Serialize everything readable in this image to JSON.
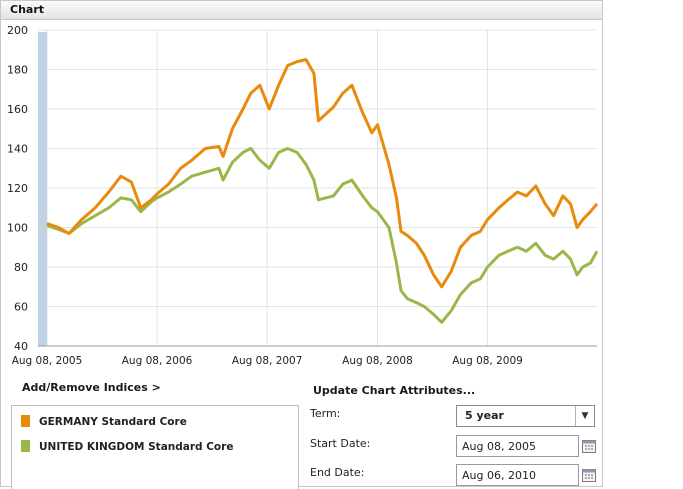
{
  "panel": {
    "title": "Chart"
  },
  "chart_data": {
    "type": "line",
    "ylim": [
      40,
      200
    ],
    "yticks": [
      "200",
      "180",
      "160",
      "140",
      "120",
      "100",
      "80",
      "60",
      "40"
    ],
    "xticks": [
      "Aug 08, 2005",
      "Aug 08, 2006",
      "Aug 08, 2007",
      "Aug 08, 2008",
      "Aug 08, 2009"
    ],
    "x_range": [
      "Aug 08, 2005",
      "Aug 06, 2010"
    ],
    "grid": true,
    "series": [
      {
        "name": "GERMANY Standard Core",
        "color": "#e88a0c",
        "points": [
          [
            "2005-08-08",
            102
          ],
          [
            "2005-09-15",
            100
          ],
          [
            "2005-10-20",
            97
          ],
          [
            "2005-12-01",
            104
          ],
          [
            "2006-01-15",
            110
          ],
          [
            "2006-03-01",
            118
          ],
          [
            "2006-04-10",
            126
          ],
          [
            "2006-05-15",
            123
          ],
          [
            "2006-06-15",
            110
          ],
          [
            "2006-07-20",
            114
          ],
          [
            "2006-08-08",
            117
          ],
          [
            "2006-09-15",
            122
          ],
          [
            "2006-10-25",
            130
          ],
          [
            "2006-12-01",
            134
          ],
          [
            "2007-01-15",
            140
          ],
          [
            "2007-03-01",
            141
          ],
          [
            "2007-03-15",
            136
          ],
          [
            "2007-04-15",
            150
          ],
          [
            "2007-05-20",
            160
          ],
          [
            "2007-06-15",
            168
          ],
          [
            "2007-07-15",
            172
          ],
          [
            "2007-08-15",
            160
          ],
          [
            "2007-09-15",
            172
          ],
          [
            "2007-10-15",
            182
          ],
          [
            "2007-11-15",
            184
          ],
          [
            "2007-12-15",
            185
          ],
          [
            "2008-01-10",
            178
          ],
          [
            "2008-01-25",
            154
          ],
          [
            "2008-03-15",
            161
          ],
          [
            "2008-04-15",
            168
          ],
          [
            "2008-05-15",
            172
          ],
          [
            "2008-06-20",
            158
          ],
          [
            "2008-07-20",
            148
          ],
          [
            "2008-08-08",
            152
          ],
          [
            "2008-09-15",
            132
          ],
          [
            "2008-10-10",
            115
          ],
          [
            "2008-10-25",
            98
          ],
          [
            "2008-11-15",
            96
          ],
          [
            "2008-12-15",
            92
          ],
          [
            "2009-01-10",
            86
          ],
          [
            "2009-02-10",
            76
          ],
          [
            "2009-03-09",
            70
          ],
          [
            "2009-04-10",
            78
          ],
          [
            "2009-05-10",
            90
          ],
          [
            "2009-06-15",
            96
          ],
          [
            "2009-07-15",
            98
          ],
          [
            "2009-08-08",
            104
          ],
          [
            "2009-09-15",
            110
          ],
          [
            "2009-10-15",
            114
          ],
          [
            "2009-11-15",
            118
          ],
          [
            "2009-12-15",
            116
          ],
          [
            "2010-01-15",
            121
          ],
          [
            "2010-02-15",
            112
          ],
          [
            "2010-03-15",
            106
          ],
          [
            "2010-04-15",
            116
          ],
          [
            "2010-05-10",
            112
          ],
          [
            "2010-06-01",
            100
          ],
          [
            "2010-06-20",
            104
          ],
          [
            "2010-07-15",
            108
          ],
          [
            "2010-08-06",
            112
          ]
        ]
      },
      {
        "name": "UNITED KINGDOM Standard Core",
        "color": "#9ab84a",
        "points": [
          [
            "2005-08-08",
            101
          ],
          [
            "2005-09-15",
            99
          ],
          [
            "2005-10-20",
            97
          ],
          [
            "2005-12-01",
            102
          ],
          [
            "2006-01-15",
            106
          ],
          [
            "2006-03-01",
            110
          ],
          [
            "2006-04-10",
            115
          ],
          [
            "2006-05-15",
            114
          ],
          [
            "2006-06-15",
            108
          ],
          [
            "2006-07-20",
            113
          ],
          [
            "2006-08-08",
            115
          ],
          [
            "2006-09-15",
            118
          ],
          [
            "2006-10-25",
            122
          ],
          [
            "2006-12-01",
            126
          ],
          [
            "2007-01-15",
            128
          ],
          [
            "2007-03-01",
            130
          ],
          [
            "2007-03-15",
            124
          ],
          [
            "2007-04-15",
            133
          ],
          [
            "2007-05-20",
            138
          ],
          [
            "2007-06-15",
            140
          ],
          [
            "2007-07-15",
            134
          ],
          [
            "2007-08-15",
            130
          ],
          [
            "2007-09-15",
            138
          ],
          [
            "2007-10-15",
            140
          ],
          [
            "2007-11-15",
            138
          ],
          [
            "2007-12-15",
            132
          ],
          [
            "2008-01-10",
            124
          ],
          [
            "2008-01-25",
            114
          ],
          [
            "2008-03-15",
            116
          ],
          [
            "2008-04-15",
            122
          ],
          [
            "2008-05-15",
            124
          ],
          [
            "2008-06-20",
            116
          ],
          [
            "2008-07-20",
            110
          ],
          [
            "2008-08-08",
            108
          ],
          [
            "2008-09-15",
            100
          ],
          [
            "2008-10-10",
            82
          ],
          [
            "2008-10-25",
            68
          ],
          [
            "2008-11-15",
            64
          ],
          [
            "2008-12-15",
            62
          ],
          [
            "2009-01-10",
            60
          ],
          [
            "2009-02-10",
            56
          ],
          [
            "2009-03-09",
            52
          ],
          [
            "2009-04-10",
            58
          ],
          [
            "2009-05-10",
            66
          ],
          [
            "2009-06-15",
            72
          ],
          [
            "2009-07-15",
            74
          ],
          [
            "2009-08-08",
            80
          ],
          [
            "2009-09-15",
            86
          ],
          [
            "2009-10-15",
            88
          ],
          [
            "2009-11-15",
            90
          ],
          [
            "2009-12-15",
            88
          ],
          [
            "2010-01-15",
            92
          ],
          [
            "2010-02-15",
            86
          ],
          [
            "2010-03-15",
            84
          ],
          [
            "2010-04-15",
            88
          ],
          [
            "2010-05-10",
            84
          ],
          [
            "2010-06-01",
            76
          ],
          [
            "2010-06-20",
            80
          ],
          [
            "2010-07-15",
            82
          ],
          [
            "2010-08-06",
            88
          ]
        ]
      }
    ]
  },
  "links": {
    "add_remove": "Add/Remove Indices >"
  },
  "legend": {
    "items": [
      {
        "label": "GERMANY Standard Core",
        "color": "#e88a0c"
      },
      {
        "label": "UNITED KINGDOM Standard Core",
        "color": "#9ab84a"
      }
    ]
  },
  "attributes": {
    "title": "Update Chart Attributes...",
    "term_label": "Term:",
    "term_value": "5 year",
    "start_label": "Start Date:",
    "start_value": "Aug 08, 2005",
    "end_label": "End Date:",
    "end_value": "Aug 06, 2010"
  }
}
